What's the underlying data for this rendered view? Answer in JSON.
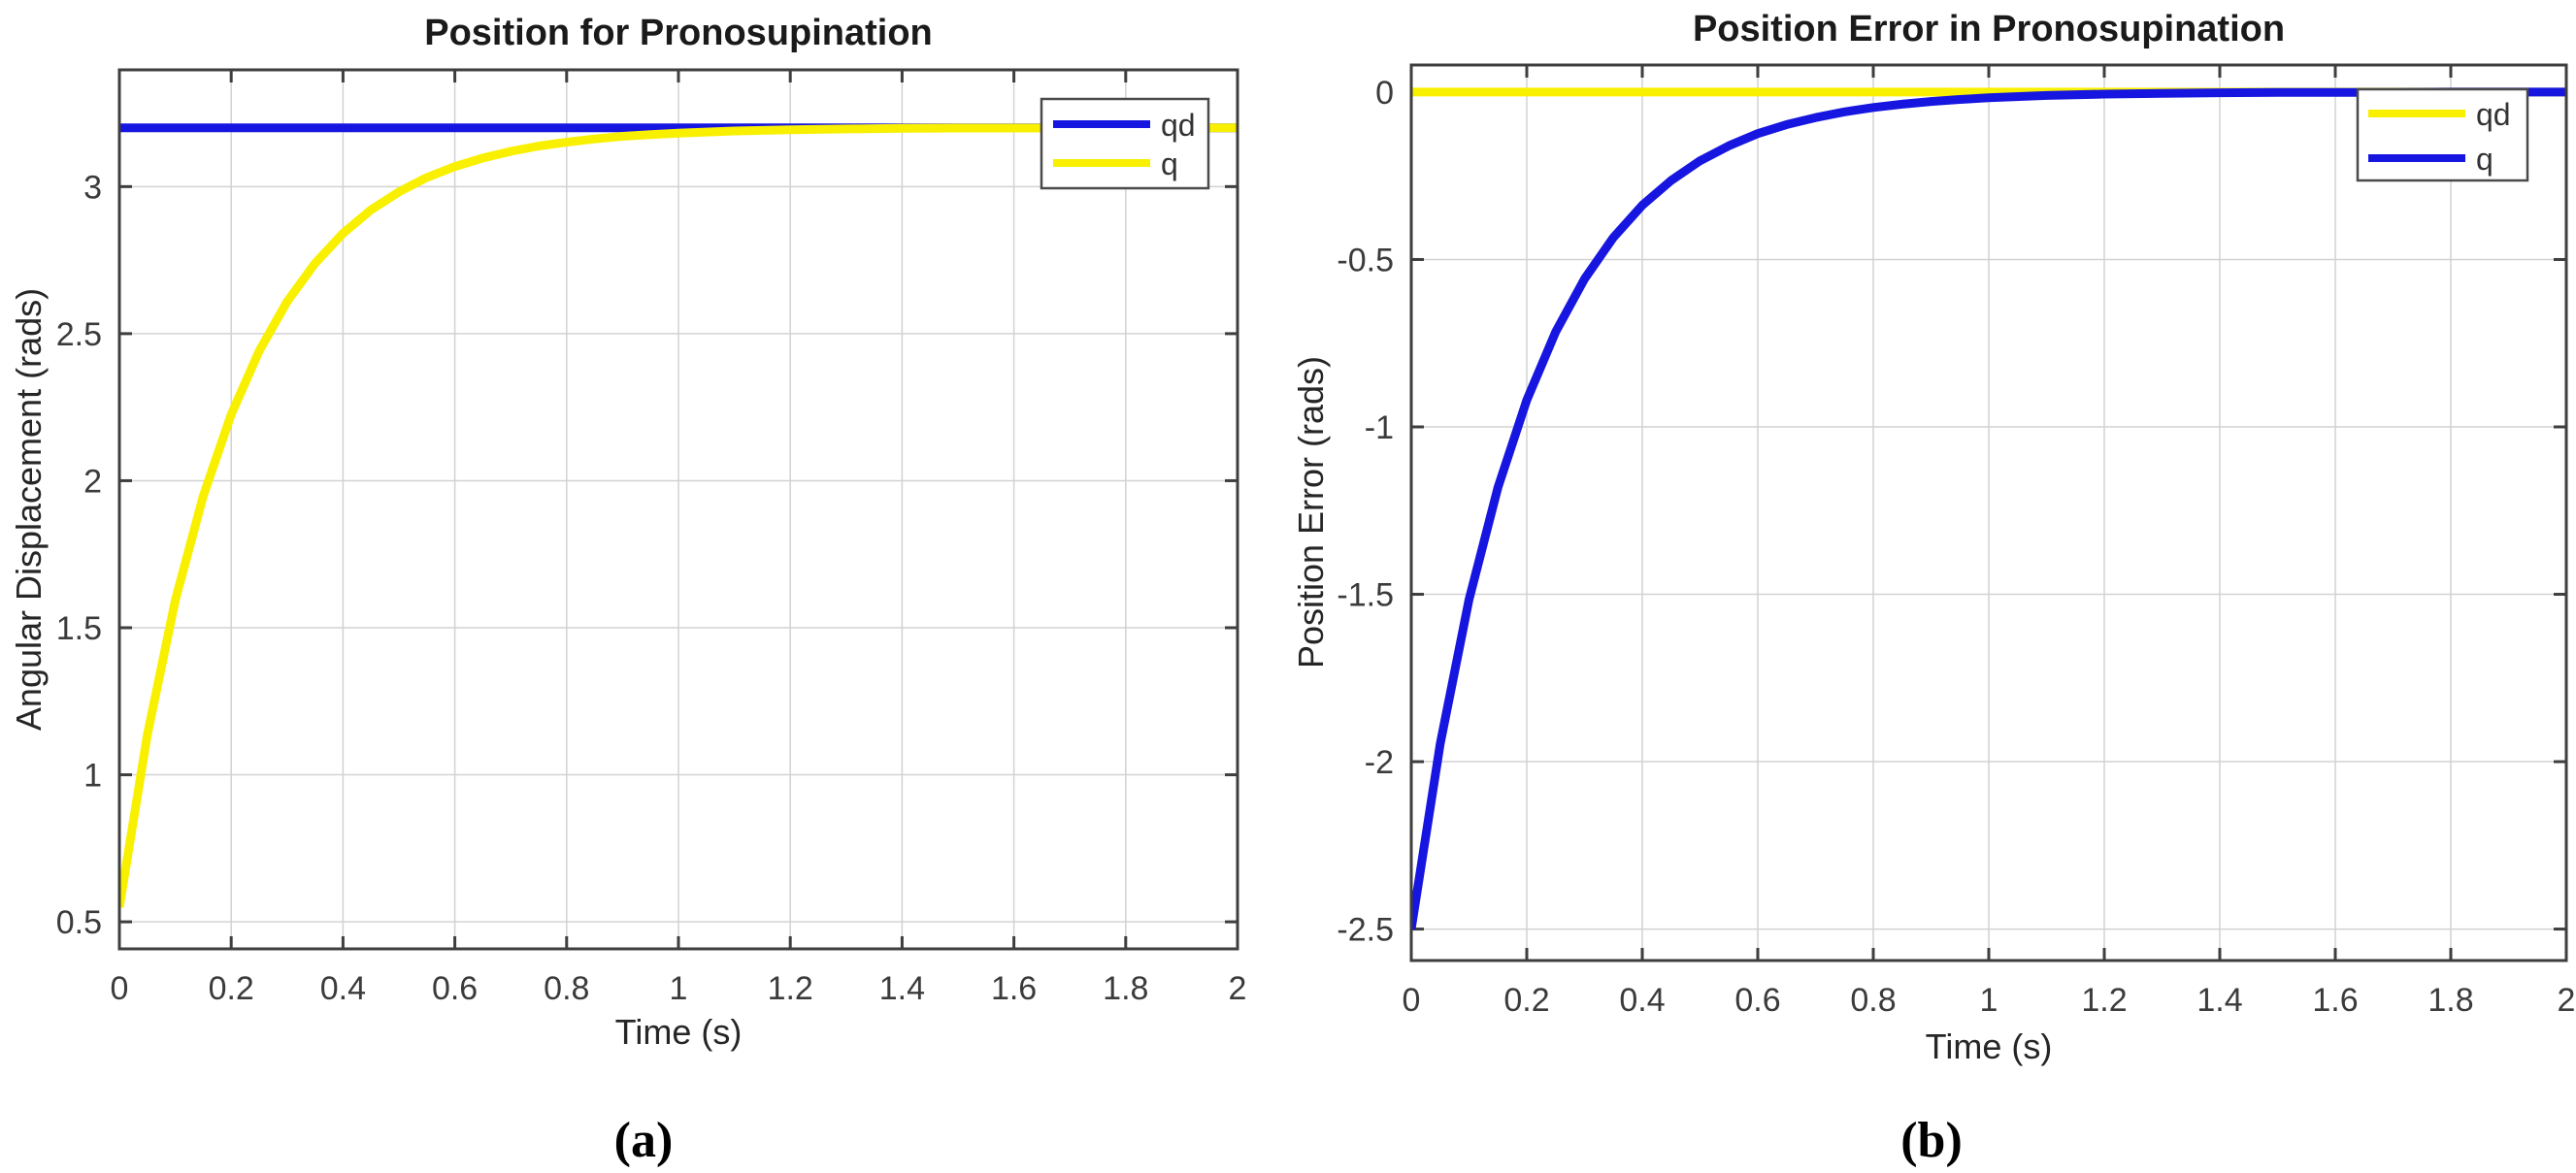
{
  "figure": {
    "captions": [
      "(a)",
      "(b)"
    ]
  },
  "chart_data": [
    {
      "type": "line",
      "title": "Position for Pronosupination",
      "xlabel": "Time (s)",
      "ylabel": "Angular Displacement (rads)",
      "xlim": [
        0,
        2
      ],
      "ylim": [
        0.408,
        3.397
      ],
      "grid": true,
      "legend_position": "northeast",
      "xticks": {
        "values": [
          0,
          0.2,
          0.4,
          0.6,
          0.8,
          1,
          1.2,
          1.4,
          1.6,
          1.8,
          2
        ],
        "labels": [
          "0",
          "0.2",
          "0.4",
          "0.6",
          "0.8",
          "1",
          "1.2",
          "1.4",
          "1.6",
          "1.8",
          "2"
        ]
      },
      "yticks": {
        "values": [
          0.5,
          1,
          1.5,
          2,
          2.5,
          3
        ],
        "labels": [
          "0.5",
          "1",
          "1.5",
          "2",
          "2.5",
          "3"
        ]
      },
      "series": [
        {
          "name": "qd",
          "color": "#1616e0",
          "width": 9,
          "points": [
            [
              0,
              3.2
            ],
            [
              2,
              3.2
            ]
          ]
        },
        {
          "name": "q",
          "color": "#f9f000",
          "width": 9,
          "points": [
            [
              0,
              0.55
            ],
            [
              0.05,
              1.136
            ],
            [
              0.1,
              1.593
            ],
            [
              0.15,
              1.948
            ],
            [
              0.2,
              2.225
            ],
            [
              0.25,
              2.441
            ],
            [
              0.3,
              2.609
            ],
            [
              0.35,
              2.739
            ],
            [
              0.4,
              2.841
            ],
            [
              0.45,
              2.921
            ],
            [
              0.5,
              2.982
            ],
            [
              0.55,
              3.031
            ],
            [
              0.6,
              3.068
            ],
            [
              0.65,
              3.097
            ],
            [
              0.7,
              3.12
            ],
            [
              0.75,
              3.138
            ],
            [
              0.8,
              3.151
            ],
            [
              0.85,
              3.162
            ],
            [
              0.9,
              3.171
            ],
            [
              0.95,
              3.177
            ],
            [
              1,
              3.182
            ],
            [
              1.1,
              3.189
            ],
            [
              1.2,
              3.193
            ],
            [
              1.3,
              3.196
            ],
            [
              1.4,
              3.198
            ],
            [
              1.5,
              3.199
            ],
            [
              1.6,
              3.199
            ],
            [
              1.7,
              3.199
            ],
            [
              1.8,
              3.2
            ],
            [
              1.9,
              3.2
            ],
            [
              2,
              3.2
            ]
          ]
        }
      ]
    },
    {
      "type": "line",
      "title": "Position Error in Pronosupination",
      "xlabel": "Time (s)",
      "ylabel": "Position Error (rads)",
      "xlim": [
        0,
        2
      ],
      "ylim": [
        -2.594,
        0.081
      ],
      "grid": true,
      "legend_position": "northeast",
      "xticks": {
        "values": [
          0,
          0.2,
          0.4,
          0.6,
          0.8,
          1,
          1.2,
          1.4,
          1.6,
          1.8,
          2
        ],
        "labels": [
          "0",
          "0.2",
          "0.4",
          "0.6",
          "0.8",
          "1",
          "1.2",
          "1.4",
          "1.6",
          "1.8",
          "2"
        ]
      },
      "yticks": {
        "values": [
          0,
          -0.5,
          -1,
          -1.5,
          -2,
          -2.5
        ],
        "labels": [
          "0",
          "-0.5",
          "-1",
          "-1.5",
          "-2",
          "-2.5"
        ]
      },
      "series": [
        {
          "name": "qd",
          "color": "#f9f000",
          "width": 9,
          "points": [
            [
              0,
              0
            ],
            [
              2,
              0
            ]
          ]
        },
        {
          "name": "q",
          "color": "#1616e0",
          "width": 9,
          "points": [
            [
              0,
              -2.5
            ],
            [
              0.05,
              -1.947
            ],
            [
              0.1,
              -1.516
            ],
            [
              0.15,
              -1.181
            ],
            [
              0.2,
              -0.92
            ],
            [
              0.25,
              -0.716
            ],
            [
              0.3,
              -0.558
            ],
            [
              0.35,
              -0.434
            ],
            [
              0.4,
              -0.338
            ],
            [
              0.45,
              -0.264
            ],
            [
              0.5,
              -0.205
            ],
            [
              0.55,
              -0.16
            ],
            [
              0.6,
              -0.124
            ],
            [
              0.65,
              -0.097
            ],
            [
              0.7,
              -0.076
            ],
            [
              0.75,
              -0.059
            ],
            [
              0.8,
              -0.046
            ],
            [
              0.85,
              -0.036
            ],
            [
              0.9,
              -0.028
            ],
            [
              0.95,
              -0.022
            ],
            [
              1,
              -0.017
            ],
            [
              1.1,
              -0.01
            ],
            [
              1.2,
              -0.006
            ],
            [
              1.3,
              -0.004
            ],
            [
              1.4,
              -0.002
            ],
            [
              1.5,
              -0.001
            ],
            [
              1.6,
              -0.001
            ],
            [
              1.7,
              -0.001
            ],
            [
              1.8,
              0
            ],
            [
              1.9,
              0
            ],
            [
              2,
              0
            ]
          ]
        }
      ]
    }
  ]
}
